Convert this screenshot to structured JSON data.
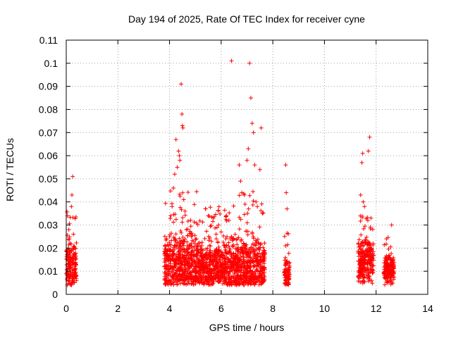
{
  "chart_data": {
    "type": "scatter",
    "title": "Day 194 of 2025, Rate Of TEC Index for receiver cyne",
    "xlabel": "GPS time / hours",
    "ylabel": "ROTI / TECUs",
    "xlim": [
      0,
      14
    ],
    "ylim": [
      0,
      0.11
    ],
    "x_ticks": [
      0,
      2,
      4,
      6,
      8,
      10,
      12,
      14
    ],
    "y_ticks": [
      0,
      0.01,
      0.02,
      0.03,
      0.04,
      0.05,
      0.06,
      0.07,
      0.08,
      0.09,
      0.1,
      0.11
    ],
    "x_tick_labels": [
      "0",
      "2",
      "4",
      "6",
      "8",
      "10",
      "12",
      "14"
    ],
    "y_tick_labels": [
      "0",
      "0.01",
      "0.02",
      "0.03",
      "0.04",
      "0.05",
      "0.06",
      "0.07",
      "0.08",
      "0.09",
      "0.1",
      "0.11"
    ],
    "grid": true,
    "marker": "+",
    "color": "#ff0000",
    "clusters": [
      {
        "x_start": 0.0,
        "x_end": 0.4,
        "y_typical": 0.012,
        "y_spread": 0.01,
        "y_max": 0.036
      },
      {
        "x_start": 3.8,
        "x_end": 5.1,
        "y_typical": 0.013,
        "y_spread": 0.012,
        "y_max": 0.045
      },
      {
        "x_start": 5.1,
        "x_end": 6.4,
        "y_typical": 0.012,
        "y_spread": 0.01,
        "y_max": 0.038
      },
      {
        "x_start": 6.4,
        "x_end": 7.7,
        "y_typical": 0.012,
        "y_spread": 0.012,
        "y_max": 0.045
      },
      {
        "x_start": 8.45,
        "x_end": 8.65,
        "y_typical": 0.009,
        "y_spread": 0.006,
        "y_max": 0.03
      },
      {
        "x_start": 11.3,
        "x_end": 11.9,
        "y_typical": 0.014,
        "y_spread": 0.01,
        "y_max": 0.035
      },
      {
        "x_start": 12.3,
        "x_end": 12.7,
        "y_typical": 0.011,
        "y_spread": 0.006,
        "y_max": 0.025
      }
    ],
    "points": [
      [
        0.05,
        0.034
      ],
      [
        0.1,
        0.028
      ],
      [
        0.12,
        0.024
      ],
      [
        0.2,
        0.038
      ],
      [
        0.22,
        0.043
      ],
      [
        0.25,
        0.051
      ],
      [
        0.28,
        0.026
      ],
      [
        0.3,
        0.02
      ],
      [
        3.9,
        0.017
      ],
      [
        4.0,
        0.025
      ],
      [
        4.05,
        0.034
      ],
      [
        4.1,
        0.038
      ],
      [
        4.15,
        0.046
      ],
      [
        4.2,
        0.052
      ],
      [
        4.25,
        0.067
      ],
      [
        4.3,
        0.055
      ],
      [
        4.35,
        0.062
      ],
      [
        4.38,
        0.06
      ],
      [
        4.4,
        0.058
      ],
      [
        4.45,
        0.091
      ],
      [
        4.48,
        0.078
      ],
      [
        4.5,
        0.073
      ],
      [
        4.52,
        0.072
      ],
      [
        4.55,
        0.041
      ],
      [
        4.6,
        0.036
      ],
      [
        4.65,
        0.028
      ],
      [
        5.4,
        0.037
      ],
      [
        5.5,
        0.034
      ],
      [
        5.7,
        0.033
      ],
      [
        5.9,
        0.03
      ],
      [
        6.0,
        0.027
      ],
      [
        6.2,
        0.034
      ],
      [
        6.3,
        0.032
      ],
      [
        6.4,
        0.101
      ],
      [
        6.7,
        0.056
      ],
      [
        6.75,
        0.049
      ],
      [
        6.8,
        0.044
      ],
      [
        6.9,
        0.043
      ],
      [
        7.0,
        0.058
      ],
      [
        7.05,
        0.063
      ],
      [
        7.1,
        0.1
      ],
      [
        7.15,
        0.085
      ],
      [
        7.2,
        0.074
      ],
      [
        7.25,
        0.07
      ],
      [
        7.3,
        0.056
      ],
      [
        7.35,
        0.04
      ],
      [
        7.4,
        0.038
      ],
      [
        7.5,
        0.054
      ],
      [
        7.55,
        0.072
      ],
      [
        7.6,
        0.035
      ],
      [
        8.5,
        0.056
      ],
      [
        8.52,
        0.044
      ],
      [
        8.55,
        0.037
      ],
      [
        11.4,
        0.043
      ],
      [
        11.45,
        0.057
      ],
      [
        11.48,
        0.061
      ],
      [
        11.5,
        0.04
      ],
      [
        11.55,
        0.038
      ],
      [
        11.7,
        0.062
      ],
      [
        11.75,
        0.068
      ],
      [
        11.8,
        0.033
      ],
      [
        12.4,
        0.024
      ],
      [
        12.6,
        0.03
      ]
    ]
  }
}
